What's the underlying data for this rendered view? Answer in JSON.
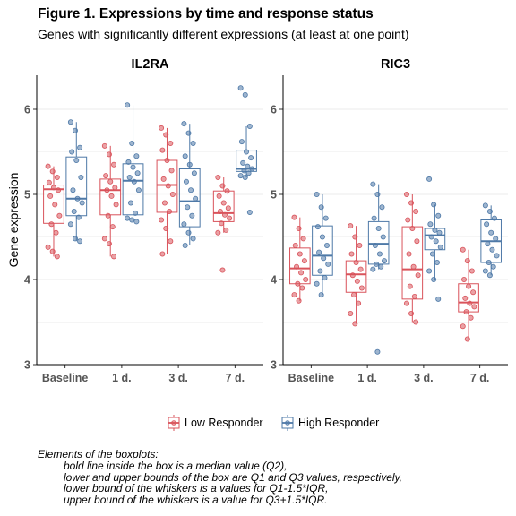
{
  "title": "Figure 1. Expressions by time and response status",
  "subtitle": "Genes with significantly different expressions (at least at one point)",
  "colors": {
    "low": "#d9535b",
    "high": "#4e79a7",
    "grid": "#ebebeb",
    "axis": "#000000"
  },
  "legend": {
    "items": [
      {
        "label": "Low Responder",
        "group": "low"
      },
      {
        "label": "High Responder",
        "group": "high"
      }
    ]
  },
  "notes": {
    "heading": "Elements of the boxplots:",
    "lines": [
      "bold line inside the box is a median value (Q2),",
      "lower and upper bounds of the box are Q1 and Q3 values, respectively,",
      "lower bound of the whiskers is a values for Q1-1.5*IQR,",
      "upper bound of the whiskers is a value for Q3+1.5*IQR."
    ]
  },
  "chart_data": {
    "type": "boxplot",
    "ylabel": "Gene expression",
    "xlabel": "",
    "ylim": [
      3,
      6.4
    ],
    "yticks": [
      3,
      4,
      5,
      6
    ],
    "categories": [
      "Baseline",
      "1 d.",
      "3 d.",
      "7 d."
    ],
    "grid": true,
    "legend_position": "bottom",
    "panels": [
      {
        "title": "IL2RA",
        "series": [
          {
            "group": "low",
            "boxes": [
              {
                "lower_whisker": 4.27,
                "q1": 4.66,
                "median": 5.06,
                "q3": 5.11,
                "upper_whisker": 5.33,
                "points": [
                  5.33,
                  5.27,
                  5.2,
                  5.14,
                  5.08,
                  5.05,
                  4.98,
                  4.88,
                  4.75,
                  4.65,
                  4.55,
                  4.38,
                  4.33,
                  4.27
                ]
              },
              {
                "lower_whisker": 4.27,
                "q1": 4.76,
                "median": 5.05,
                "q3": 5.18,
                "upper_whisker": 5.57,
                "points": [
                  5.57,
                  5.47,
                  5.35,
                  5.22,
                  5.15,
                  5.08,
                  5.05,
                  4.98,
                  4.88,
                  4.75,
                  4.62,
                  4.48,
                  4.42,
                  4.27
                ]
              },
              {
                "lower_whisker": 4.3,
                "q1": 4.79,
                "median": 5.11,
                "q3": 5.4,
                "upper_whisker": 5.78,
                "points": [
                  5.78,
                  5.7,
                  5.6,
                  5.52,
                  5.4,
                  5.28,
                  5.18,
                  5.1,
                  5.0,
                  4.9,
                  4.8,
                  4.7,
                  4.6,
                  4.45,
                  4.3
                ]
              },
              {
                "lower_whisker": 4.55,
                "q1": 4.68,
                "median": 4.78,
                "q3": 5.04,
                "upper_whisker": 5.2,
                "points": [
                  5.2,
                  5.1,
                  5.04,
                  4.98,
                  4.9,
                  4.84,
                  4.8,
                  4.76,
                  4.72,
                  4.66,
                  4.58,
                  4.55,
                  4.11
                ]
              }
            ]
          },
          {
            "group": "high",
            "boxes": [
              {
                "lower_whisker": 4.45,
                "q1": 4.75,
                "median": 4.95,
                "q3": 5.44,
                "upper_whisker": 5.85,
                "points": [
                  5.85,
                  5.75,
                  5.55,
                  5.5,
                  5.4,
                  5.2,
                  5.05,
                  4.95,
                  4.9,
                  4.8,
                  4.73,
                  4.65,
                  4.48,
                  4.45
                ]
              },
              {
                "lower_whisker": 4.68,
                "q1": 4.76,
                "median": 5.16,
                "q3": 5.36,
                "upper_whisker": 6.05,
                "points": [
                  6.05,
                  5.6,
                  5.45,
                  5.38,
                  5.32,
                  5.25,
                  5.2,
                  5.15,
                  5.05,
                  4.9,
                  4.78,
                  4.72,
                  4.7,
                  4.68
                ]
              },
              {
                "lower_whisker": 4.4,
                "q1": 4.62,
                "median": 4.92,
                "q3": 5.3,
                "upper_whisker": 5.83,
                "points": [
                  5.83,
                  5.72,
                  5.6,
                  5.45,
                  5.35,
                  5.25,
                  5.15,
                  5.05,
                  4.95,
                  4.85,
                  4.75,
                  4.65,
                  4.55,
                  4.48,
                  4.4
                ]
              },
              {
                "lower_whisker": 5.2,
                "q1": 5.27,
                "median": 5.3,
                "q3": 5.52,
                "upper_whisker": 5.8,
                "points": [
                  6.25,
                  6.17,
                  5.8,
                  5.62,
                  5.5,
                  5.43,
                  5.37,
                  5.33,
                  5.3,
                  5.28,
                  5.25,
                  5.22,
                  5.2,
                  4.79
                ]
              }
            ]
          }
        ]
      },
      {
        "title": "RIC3",
        "series": [
          {
            "group": "low",
            "boxes": [
              {
                "lower_whisker": 3.75,
                "q1": 3.95,
                "median": 4.13,
                "q3": 4.37,
                "upper_whisker": 4.73,
                "points": [
                  4.73,
                  4.6,
                  4.48,
                  4.4,
                  4.3,
                  4.22,
                  4.15,
                  4.08,
                  4.0,
                  3.95,
                  3.9,
                  3.82,
                  3.75
                ]
              },
              {
                "lower_whisker": 3.48,
                "q1": 3.85,
                "median": 4.06,
                "q3": 4.22,
                "upper_whisker": 4.63,
                "points": [
                  4.63,
                  4.5,
                  4.4,
                  4.3,
                  4.2,
                  4.12,
                  4.05,
                  3.98,
                  3.9,
                  3.82,
                  3.72,
                  3.6,
                  3.48
                ]
              },
              {
                "lower_whisker": 3.5,
                "q1": 3.77,
                "median": 4.12,
                "q3": 4.62,
                "upper_whisker": 5.0,
                "points": [
                  5.0,
                  4.9,
                  4.8,
                  4.7,
                  4.6,
                  4.45,
                  4.3,
                  4.15,
                  4.05,
                  3.92,
                  3.8,
                  3.72,
                  3.6,
                  3.5
                ]
              },
              {
                "lower_whisker": 3.3,
                "q1": 3.62,
                "median": 3.73,
                "q3": 3.95,
                "upper_whisker": 4.35,
                "points": [
                  4.35,
                  4.22,
                  4.1,
                  4.0,
                  3.92,
                  3.85,
                  3.78,
                  3.72,
                  3.68,
                  3.62,
                  3.55,
                  3.45,
                  3.3
                ]
              }
            ]
          },
          {
            "group": "high",
            "boxes": [
              {
                "lower_whisker": 3.82,
                "q1": 4.05,
                "median": 4.28,
                "q3": 4.63,
                "upper_whisker": 5.0,
                "points": [
                  5.0,
                  4.85,
                  4.72,
                  4.62,
                  4.5,
                  4.4,
                  4.32,
                  4.25,
                  4.18,
                  4.1,
                  4.02,
                  3.95,
                  3.82
                ]
              },
              {
                "lower_whisker": 4.12,
                "q1": 4.18,
                "median": 4.42,
                "q3": 4.68,
                "upper_whisker": 5.12,
                "points": [
                  5.12,
                  5.0,
                  4.85,
                  4.72,
                  4.6,
                  4.5,
                  4.4,
                  4.3,
                  4.22,
                  4.18,
                  4.15,
                  4.12,
                  3.15
                ]
              },
              {
                "lower_whisker": 4.0,
                "q1": 4.35,
                "median": 4.52,
                "q3": 4.6,
                "upper_whisker": 4.88,
                "points": [
                  5.18,
                  4.88,
                  4.75,
                  4.65,
                  4.58,
                  4.55,
                  4.5,
                  4.45,
                  4.38,
                  4.3,
                  4.2,
                  4.1,
                  4.0,
                  3.77
                ]
              },
              {
                "lower_whisker": 4.05,
                "q1": 4.2,
                "median": 4.45,
                "q3": 4.7,
                "upper_whisker": 4.87,
                "points": [
                  4.87,
                  4.8,
                  4.72,
                  4.65,
                  4.55,
                  4.48,
                  4.42,
                  4.35,
                  4.28,
                  4.2,
                  4.15,
                  4.1,
                  4.05
                ]
              }
            ]
          }
        ]
      }
    ]
  }
}
